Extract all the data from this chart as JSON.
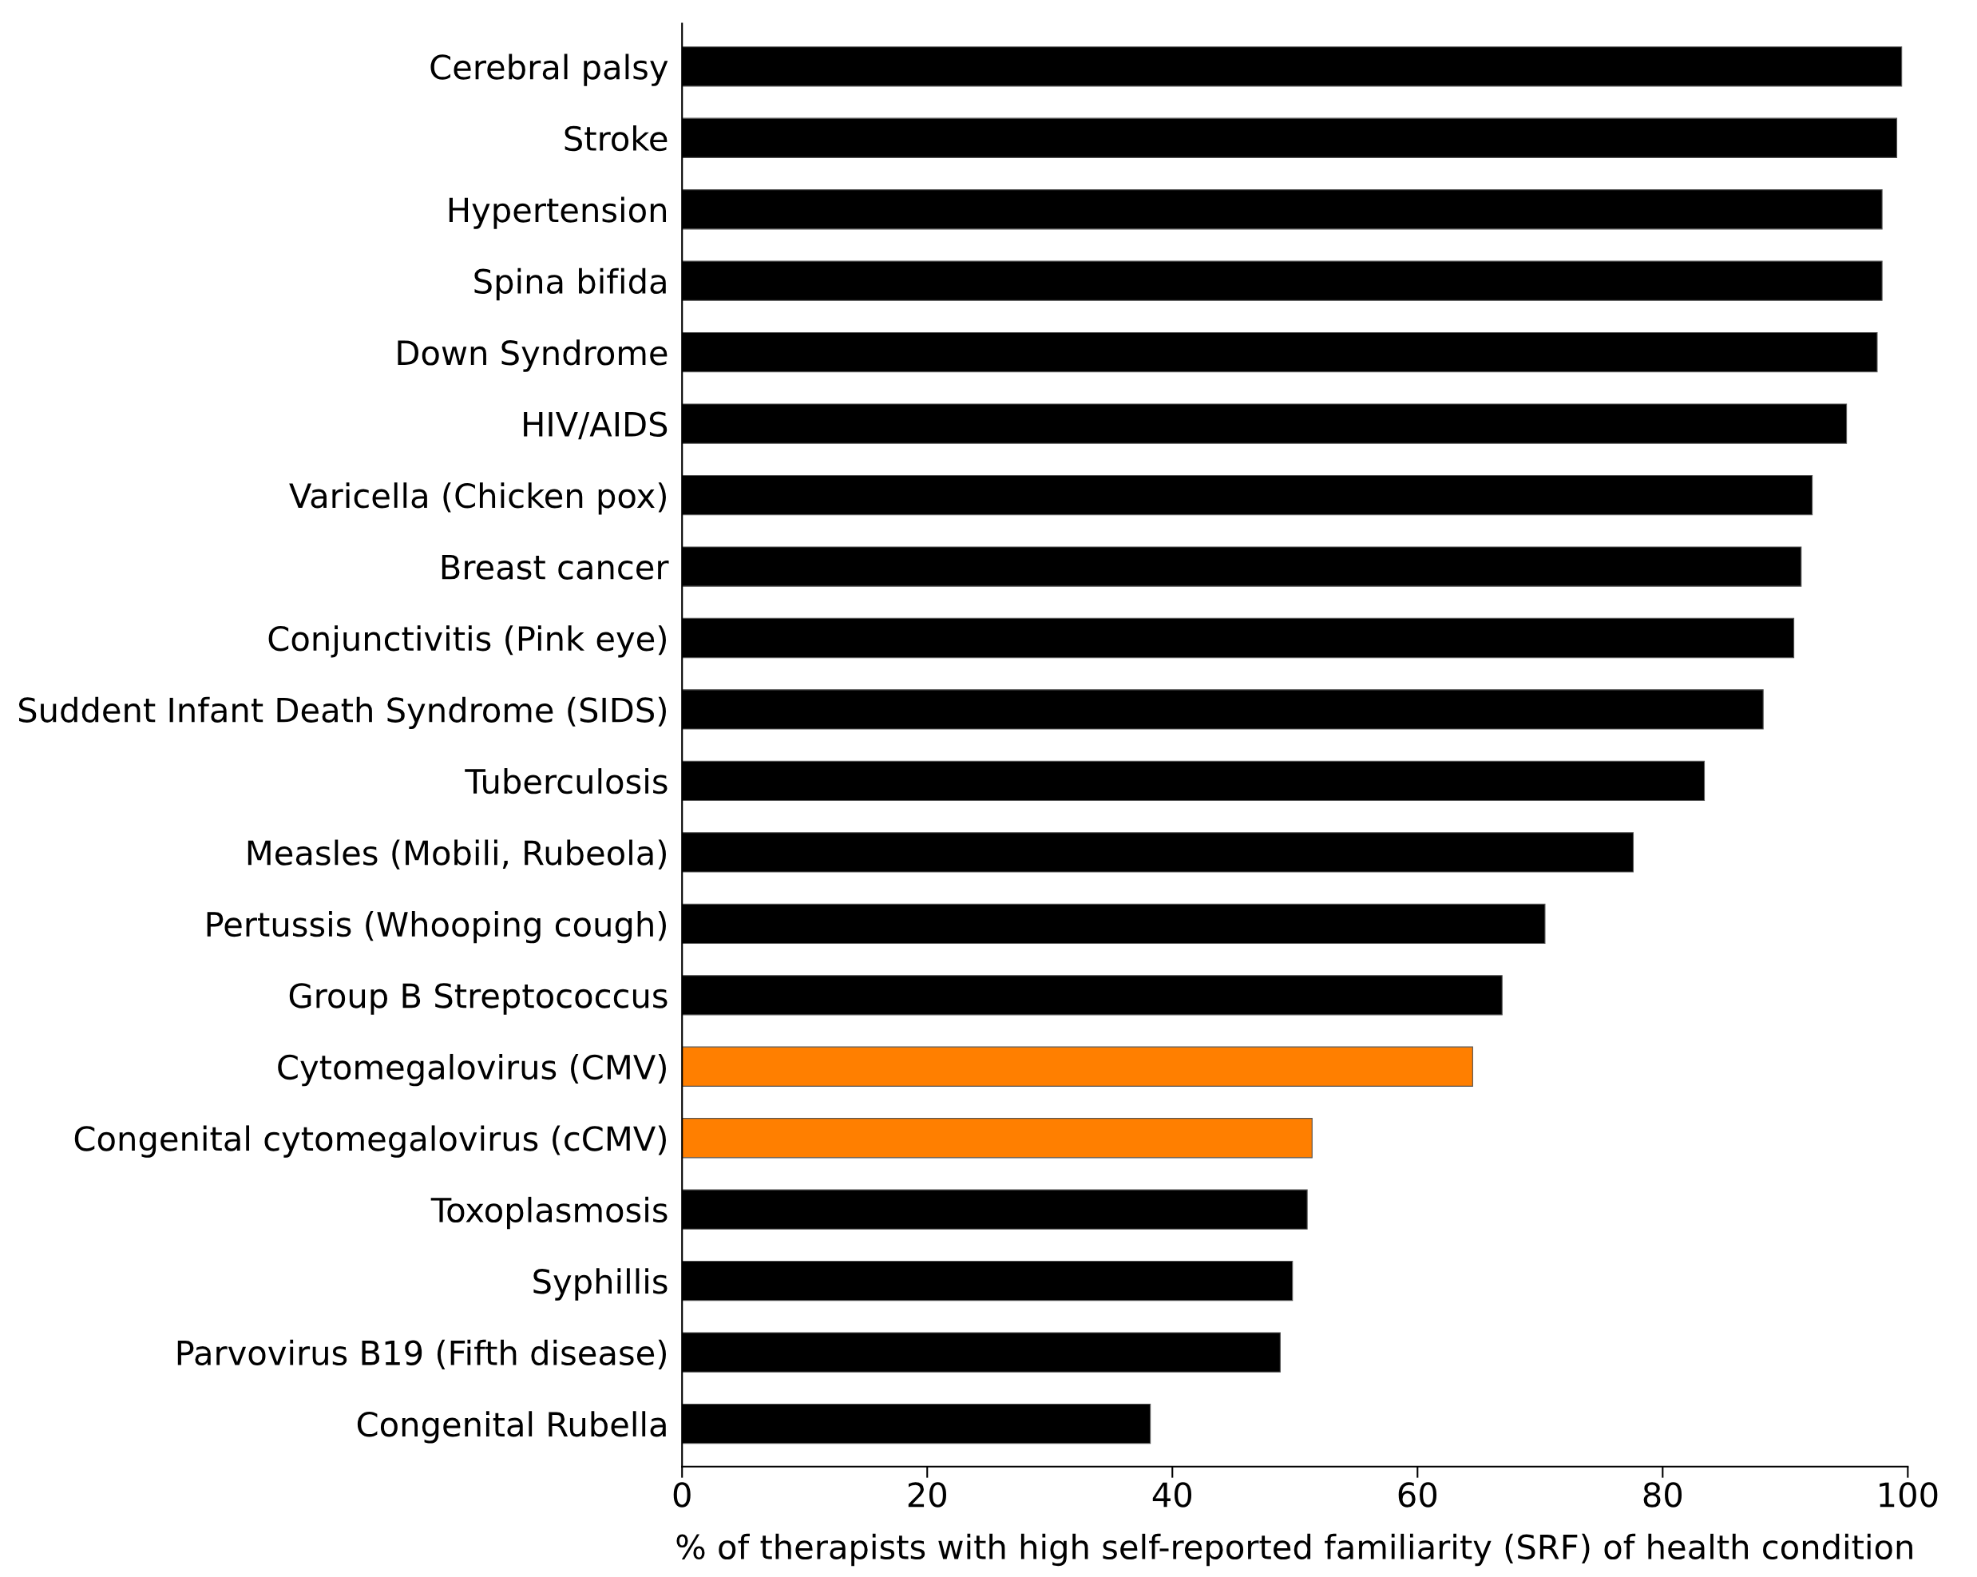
{
  "chart_data": {
    "type": "bar",
    "orientation": "horizontal",
    "categories": [
      "Cerebral palsy",
      "Stroke",
      "Hypertension",
      "Spina bifida",
      "Down Syndrome",
      "HIV/AIDS",
      "Varicella (Chicken pox)",
      "Breast cancer",
      "Conjunctivitis (Pink eye)",
      "Suddent Infant Death Syndrome (SIDS)",
      "Tuberculosis",
      "Measles (Mobili, Rubeola)",
      "Pertussis (Whooping cough)",
      "Group B Streptococcus",
      "Cytomegalovirus (CMV)",
      "Congenital cytomegalovirus (cCMV)",
      "Toxoplasmosis",
      "Syphillis",
      "Parvovirus B19 (Fifth disease)",
      "Congenital Rubella"
    ],
    "values": [
      99.5,
      99.1,
      97.9,
      97.9,
      97.5,
      95.0,
      92.2,
      91.3,
      90.7,
      88.2,
      83.4,
      77.6,
      70.4,
      66.9,
      64.5,
      51.4,
      51.0,
      49.8,
      48.8,
      38.2
    ],
    "colors": [
      "#000000",
      "#000000",
      "#000000",
      "#000000",
      "#000000",
      "#000000",
      "#000000",
      "#000000",
      "#000000",
      "#000000",
      "#000000",
      "#000000",
      "#000000",
      "#000000",
      "#ff7f00",
      "#ff7f00",
      "#000000",
      "#000000",
      "#000000",
      "#000000"
    ],
    "xlabel": "% of therapists with high self-reported familiarity (SRF) of health condition",
    "xlim": [
      0,
      100
    ],
    "xticks": [
      0,
      20,
      40,
      60,
      80,
      100
    ],
    "grid": false,
    "legend": false
  }
}
